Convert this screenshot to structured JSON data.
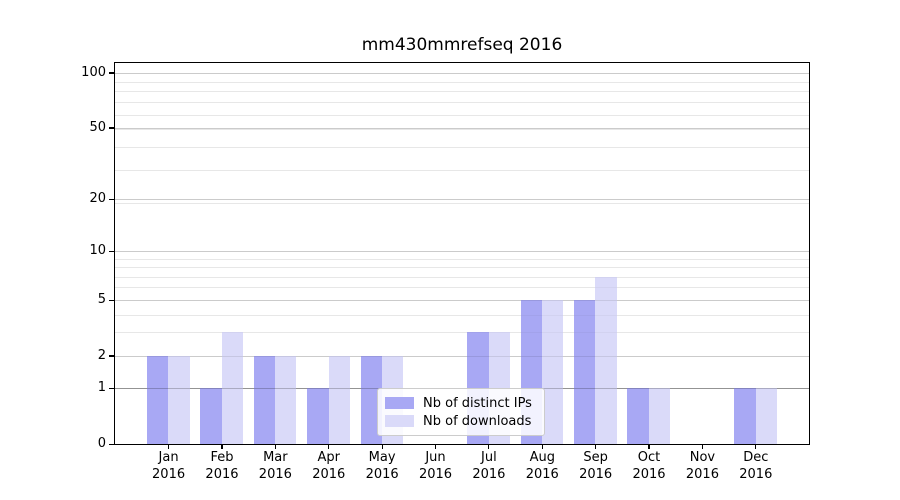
{
  "title": "mm430mmrefseq 2016",
  "chart_data": {
    "type": "bar",
    "title": "mm430mmrefseq 2016",
    "categories": [
      "Jan",
      "Feb",
      "Mar",
      "Apr",
      "May",
      "Jun",
      "Jul",
      "Aug",
      "Sep",
      "Oct",
      "Nov",
      "Dec"
    ],
    "category_year": "2016",
    "series": [
      {
        "name": "Nb of distinct IPs",
        "color": "#a8a8f4",
        "values": [
          2,
          1,
          2,
          1,
          2,
          0,
          3,
          5,
          5,
          1,
          0,
          1
        ]
      },
      {
        "name": "Nb of downloads",
        "color": "#dadaf9",
        "values": [
          2,
          3,
          2,
          2,
          2,
          0,
          3,
          5,
          7,
          1,
          0,
          1
        ]
      }
    ],
    "xlabel": "",
    "ylabel": "",
    "yscale": "log(value+1)",
    "ylim": [
      0,
      113
    ],
    "yticks": [
      0,
      1,
      2,
      5,
      10,
      20,
      50,
      100
    ],
    "minor_gridline_values": [
      3,
      4,
      6,
      7,
      8,
      9,
      19,
      29,
      39,
      49,
      59,
      69,
      79,
      89
    ],
    "grid": "on",
    "legend_position": "lower center",
    "colors": {
      "bar_distinct_ips": "#a8a8f4",
      "bar_downloads": "#dadaf9",
      "gridline_major": "#e0e0e0",
      "gridline_minor": "#f0f0f0",
      "gridline_unit": "#bdbdbd",
      "axis": "#000000"
    }
  },
  "legend": {
    "item1": "Nb of distinct IPs",
    "item2": "Nb of downloads"
  }
}
